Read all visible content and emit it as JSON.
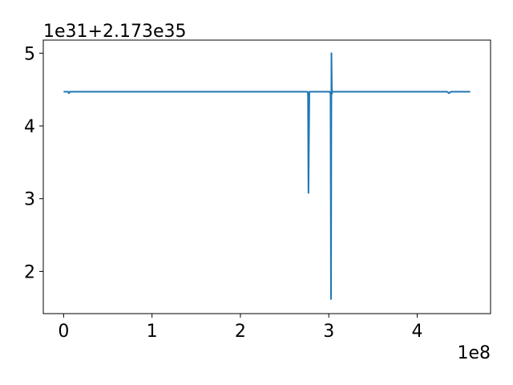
{
  "chart_data": {
    "type": "line",
    "title": "",
    "xlabel": "",
    "ylabel": "",
    "x_offset_text": "1e8",
    "y_offset_text": "1e31+2.173e35",
    "xlim": [
      -0.23,
      4.83
    ],
    "ylim": [
      1.42,
      5.18
    ],
    "x_ticks": [
      0,
      1,
      2,
      3,
      4
    ],
    "x_tick_labels": [
      "0",
      "1",
      "2",
      "3",
      "4"
    ],
    "y_ticks": [
      2,
      3,
      4,
      5
    ],
    "y_tick_labels": [
      "2",
      "3",
      "4",
      "5"
    ],
    "grid": false,
    "series": [
      {
        "color": "#1f77b4",
        "x": [
          0,
          0.05,
          0.06,
          0.07,
          1.5,
          2.74,
          2.76,
          2.765,
          2.77,
          2.78,
          2.8,
          2.99,
          3.01,
          3.02,
          3.025,
          3.03,
          3.035,
          3.04,
          3.06,
          4.34,
          4.36,
          4.38,
          4.6
        ],
        "y": [
          4.47,
          4.47,
          4.45,
          4.47,
          4.47,
          4.47,
          4.47,
          4.44,
          3.08,
          4.47,
          4.47,
          4.47,
          4.47,
          4.44,
          1.62,
          5.0,
          4.44,
          4.47,
          4.47,
          4.47,
          4.45,
          4.47,
          4.47
        ]
      }
    ]
  }
}
